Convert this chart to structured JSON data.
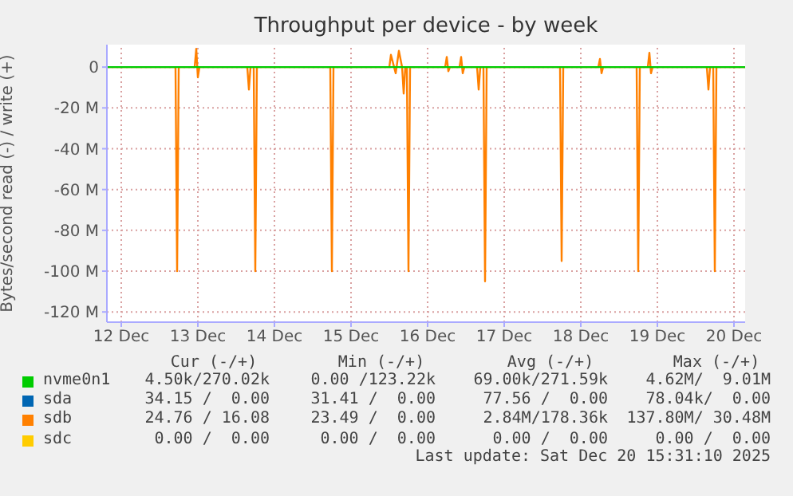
{
  "chart_data": {
    "type": "line",
    "title": "Throughput per device - by week",
    "ylabel": "Bytes/second read (-) / write (+)",
    "xlim": [
      "2025-12-12T07:30",
      "2025-12-20T15:30"
    ],
    "xticks": [
      {
        "value": "2025-12-12T12:00",
        "label": "12 Dec"
      },
      {
        "value": "2025-12-13T12:00",
        "label": "13 Dec"
      },
      {
        "value": "2025-12-14T12:00",
        "label": "14 Dec"
      },
      {
        "value": "2025-12-15T12:00",
        "label": "15 Dec"
      },
      {
        "value": "2025-12-16T12:00",
        "label": "16 Dec"
      },
      {
        "value": "2025-12-17T12:00",
        "label": "17 Dec"
      },
      {
        "value": "2025-12-18T12:00",
        "label": "18 Dec"
      },
      {
        "value": "2025-12-19T12:00",
        "label": "19 Dec"
      },
      {
        "value": "2025-12-20T12:00",
        "label": "20 Dec"
      }
    ],
    "ylim": [
      -125,
      11
    ],
    "yticks": [
      0,
      {
        "value": -20,
        "label": "-20 M"
      },
      {
        "value": -40,
        "label": "-40 M"
      },
      {
        "value": -60,
        "label": "-60 M"
      },
      {
        "value": -80,
        "label": "-80 M"
      },
      {
        "value": -100,
        "label": "-100 M"
      },
      {
        "value": -120,
        "label": "-120 M"
      }
    ],
    "grid": true,
    "legend": "bottom",
    "marker": "none",
    "line_style": "solid",
    "series": [
      {
        "name": "sdb",
        "color": "#ff8000",
        "x": [
          "2025-12-12T07:30",
          "2025-12-13T05:00",
          "2025-12-13T05:30",
          "2025-12-13T06:00",
          "2025-12-13T11:00",
          "2025-12-13T11:30",
          "2025-12-13T12:00",
          "2025-12-13T12:30",
          "2025-12-14T03:30",
          "2025-12-14T04:00",
          "2025-12-14T04:30",
          "2025-12-14T05:30",
          "2025-12-14T06:00",
          "2025-12-14T06:30",
          "2025-12-15T05:30",
          "2025-12-15T06:00",
          "2025-12-15T06:30",
          "2025-12-16T00:00",
          "2025-12-16T00:30",
          "2025-12-16T02:00",
          "2025-12-16T03:00",
          "2025-12-16T04:00",
          "2025-12-16T04:30",
          "2025-12-16T05:00",
          "2025-12-16T05:30",
          "2025-12-16T06:00",
          "2025-12-16T06:30",
          "2025-12-16T17:30",
          "2025-12-16T18:00",
          "2025-12-16T18:30",
          "2025-12-16T19:00",
          "2025-12-16T22:00",
          "2025-12-16T22:30",
          "2025-12-16T23:00",
          "2025-12-16T23:30",
          "2025-12-17T03:30",
          "2025-12-17T04:00",
          "2025-12-17T04:30",
          "2025-12-17T05:30",
          "2025-12-17T06:00",
          "2025-12-17T06:30",
          "2025-12-18T05:30",
          "2025-12-18T06:00",
          "2025-12-18T06:30",
          "2025-12-18T17:30",
          "2025-12-18T18:00",
          "2025-12-18T18:30",
          "2025-12-18T19:00",
          "2025-12-19T05:30",
          "2025-12-19T06:00",
          "2025-12-19T06:30",
          "2025-12-19T09:00",
          "2025-12-19T09:30",
          "2025-12-19T10:00",
          "2025-12-19T10:30",
          "2025-12-20T03:30",
          "2025-12-20T04:00",
          "2025-12-20T04:30",
          "2025-12-20T05:30",
          "2025-12-20T06:00",
          "2025-12-20T06:30",
          "2025-12-20T15:30"
        ],
        "values": [
          0,
          0,
          -100,
          0,
          0,
          9,
          -5,
          0,
          0,
          -11,
          0,
          0,
          -100,
          0,
          0,
          -100,
          0,
          0,
          6,
          -3,
          8,
          0,
          -13,
          0,
          0,
          -100,
          0,
          0,
          5,
          -2,
          0,
          0,
          5,
          -3,
          0,
          0,
          -11,
          0,
          0,
          -105,
          0,
          0,
          -95,
          0,
          0,
          4,
          -3,
          0,
          0,
          -100,
          0,
          0,
          7,
          -3,
          0,
          0,
          -11,
          0,
          0,
          -100,
          0,
          0
        ]
      },
      {
        "name": "nvme0n1",
        "color": "#00cc00",
        "x": [
          "2025-12-12T07:30",
          "2025-12-20T15:30"
        ],
        "values": [
          0,
          0
        ]
      },
      {
        "name": "sda",
        "color": "#0066b3"
      },
      {
        "name": "sdc",
        "color": "#ffcc00"
      }
    ],
    "annotations": [
      "Cur (-/+)",
      "Min (-/+)",
      "Avg (-/+)",
      "Max (-/+)",
      "4.50k/270.02k",
      "0.00 /123.22k",
      "69.00k/271.59k",
      "4.62M/  9.01M",
      "34.15 /  0.00",
      "31.41 /  0.00",
      "77.56 /  0.00",
      "78.04k/  0.00",
      "24.76 / 16.08",
      "23.49 /  0.00",
      "2.84M/178.36k",
      "137.80M/ 30.48M",
      "0.00 /  0.00",
      "0.00 /  0.00",
      "0.00 /  0.00",
      "0.00 /  0.00",
      "Last update: Sat Dec 20 15:31:10 2025"
    ]
  }
}
